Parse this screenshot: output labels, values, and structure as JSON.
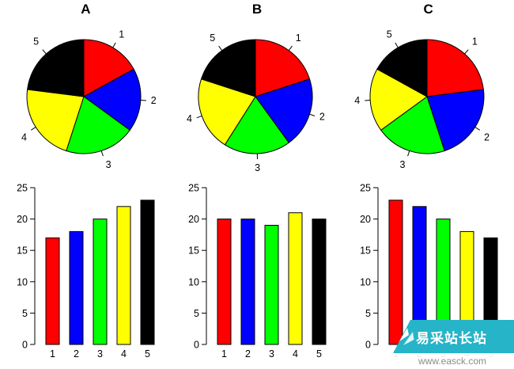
{
  "figure": {
    "background": "#ffffff"
  },
  "chart_data": [
    {
      "panel": "A",
      "pie": {
        "type": "pie",
        "labels": [
          "1",
          "2",
          "3",
          "4",
          "5"
        ],
        "values": [
          17,
          18,
          20,
          22,
          23
        ],
        "colors": [
          "#FF0000",
          "#0000FF",
          "#00FF00",
          "#FFFF00",
          "#000000"
        ],
        "start_angle_deg": 90,
        "direction": "clockwise"
      },
      "bar": {
        "type": "bar",
        "categories": [
          "1",
          "2",
          "3",
          "4",
          "5"
        ],
        "values": [
          17,
          18,
          20,
          22,
          23
        ],
        "colors": [
          "#FF0000",
          "#0000FF",
          "#00FF00",
          "#FFFF00",
          "#000000"
        ],
        "ylim": [
          0,
          25
        ],
        "yticks": [
          0,
          5,
          10,
          15,
          20,
          25
        ],
        "grid": false
      }
    },
    {
      "panel": "B",
      "pie": {
        "type": "pie",
        "labels": [
          "1",
          "2",
          "3",
          "4",
          "5"
        ],
        "values": [
          20,
          20,
          19,
          21,
          20
        ],
        "colors": [
          "#FF0000",
          "#0000FF",
          "#00FF00",
          "#FFFF00",
          "#000000"
        ],
        "start_angle_deg": 90,
        "direction": "clockwise"
      },
      "bar": {
        "type": "bar",
        "categories": [
          "1",
          "2",
          "3",
          "4",
          "5"
        ],
        "values": [
          20,
          20,
          19,
          21,
          20
        ],
        "colors": [
          "#FF0000",
          "#0000FF",
          "#00FF00",
          "#FFFF00",
          "#000000"
        ],
        "ylim": [
          0,
          25
        ],
        "yticks": [
          0,
          5,
          10,
          15,
          20,
          25
        ],
        "grid": false
      }
    },
    {
      "panel": "C",
      "pie": {
        "type": "pie",
        "labels": [
          "1",
          "2",
          "3",
          "4",
          "5"
        ],
        "values": [
          23,
          22,
          20,
          18,
          17
        ],
        "colors": [
          "#FF0000",
          "#0000FF",
          "#00FF00",
          "#FFFF00",
          "#000000"
        ],
        "start_angle_deg": 90,
        "direction": "clockwise"
      },
      "bar": {
        "type": "bar",
        "categories": [
          "1",
          "2",
          "3",
          "4",
          "5"
        ],
        "values": [
          23,
          22,
          20,
          18,
          17
        ],
        "colors": [
          "#FF0000",
          "#0000FF",
          "#00FF00",
          "#FFFF00",
          "#000000"
        ],
        "ylim": [
          0,
          25
        ],
        "yticks": [
          0,
          5,
          10,
          15,
          20,
          25
        ],
        "grid": false
      }
    }
  ],
  "watermark": {
    "title": "易采站长站",
    "url": "www.easck.com",
    "accent_color": "#25b4c8",
    "title_color": "#ffffff",
    "url_color": "#8a8a8a"
  }
}
